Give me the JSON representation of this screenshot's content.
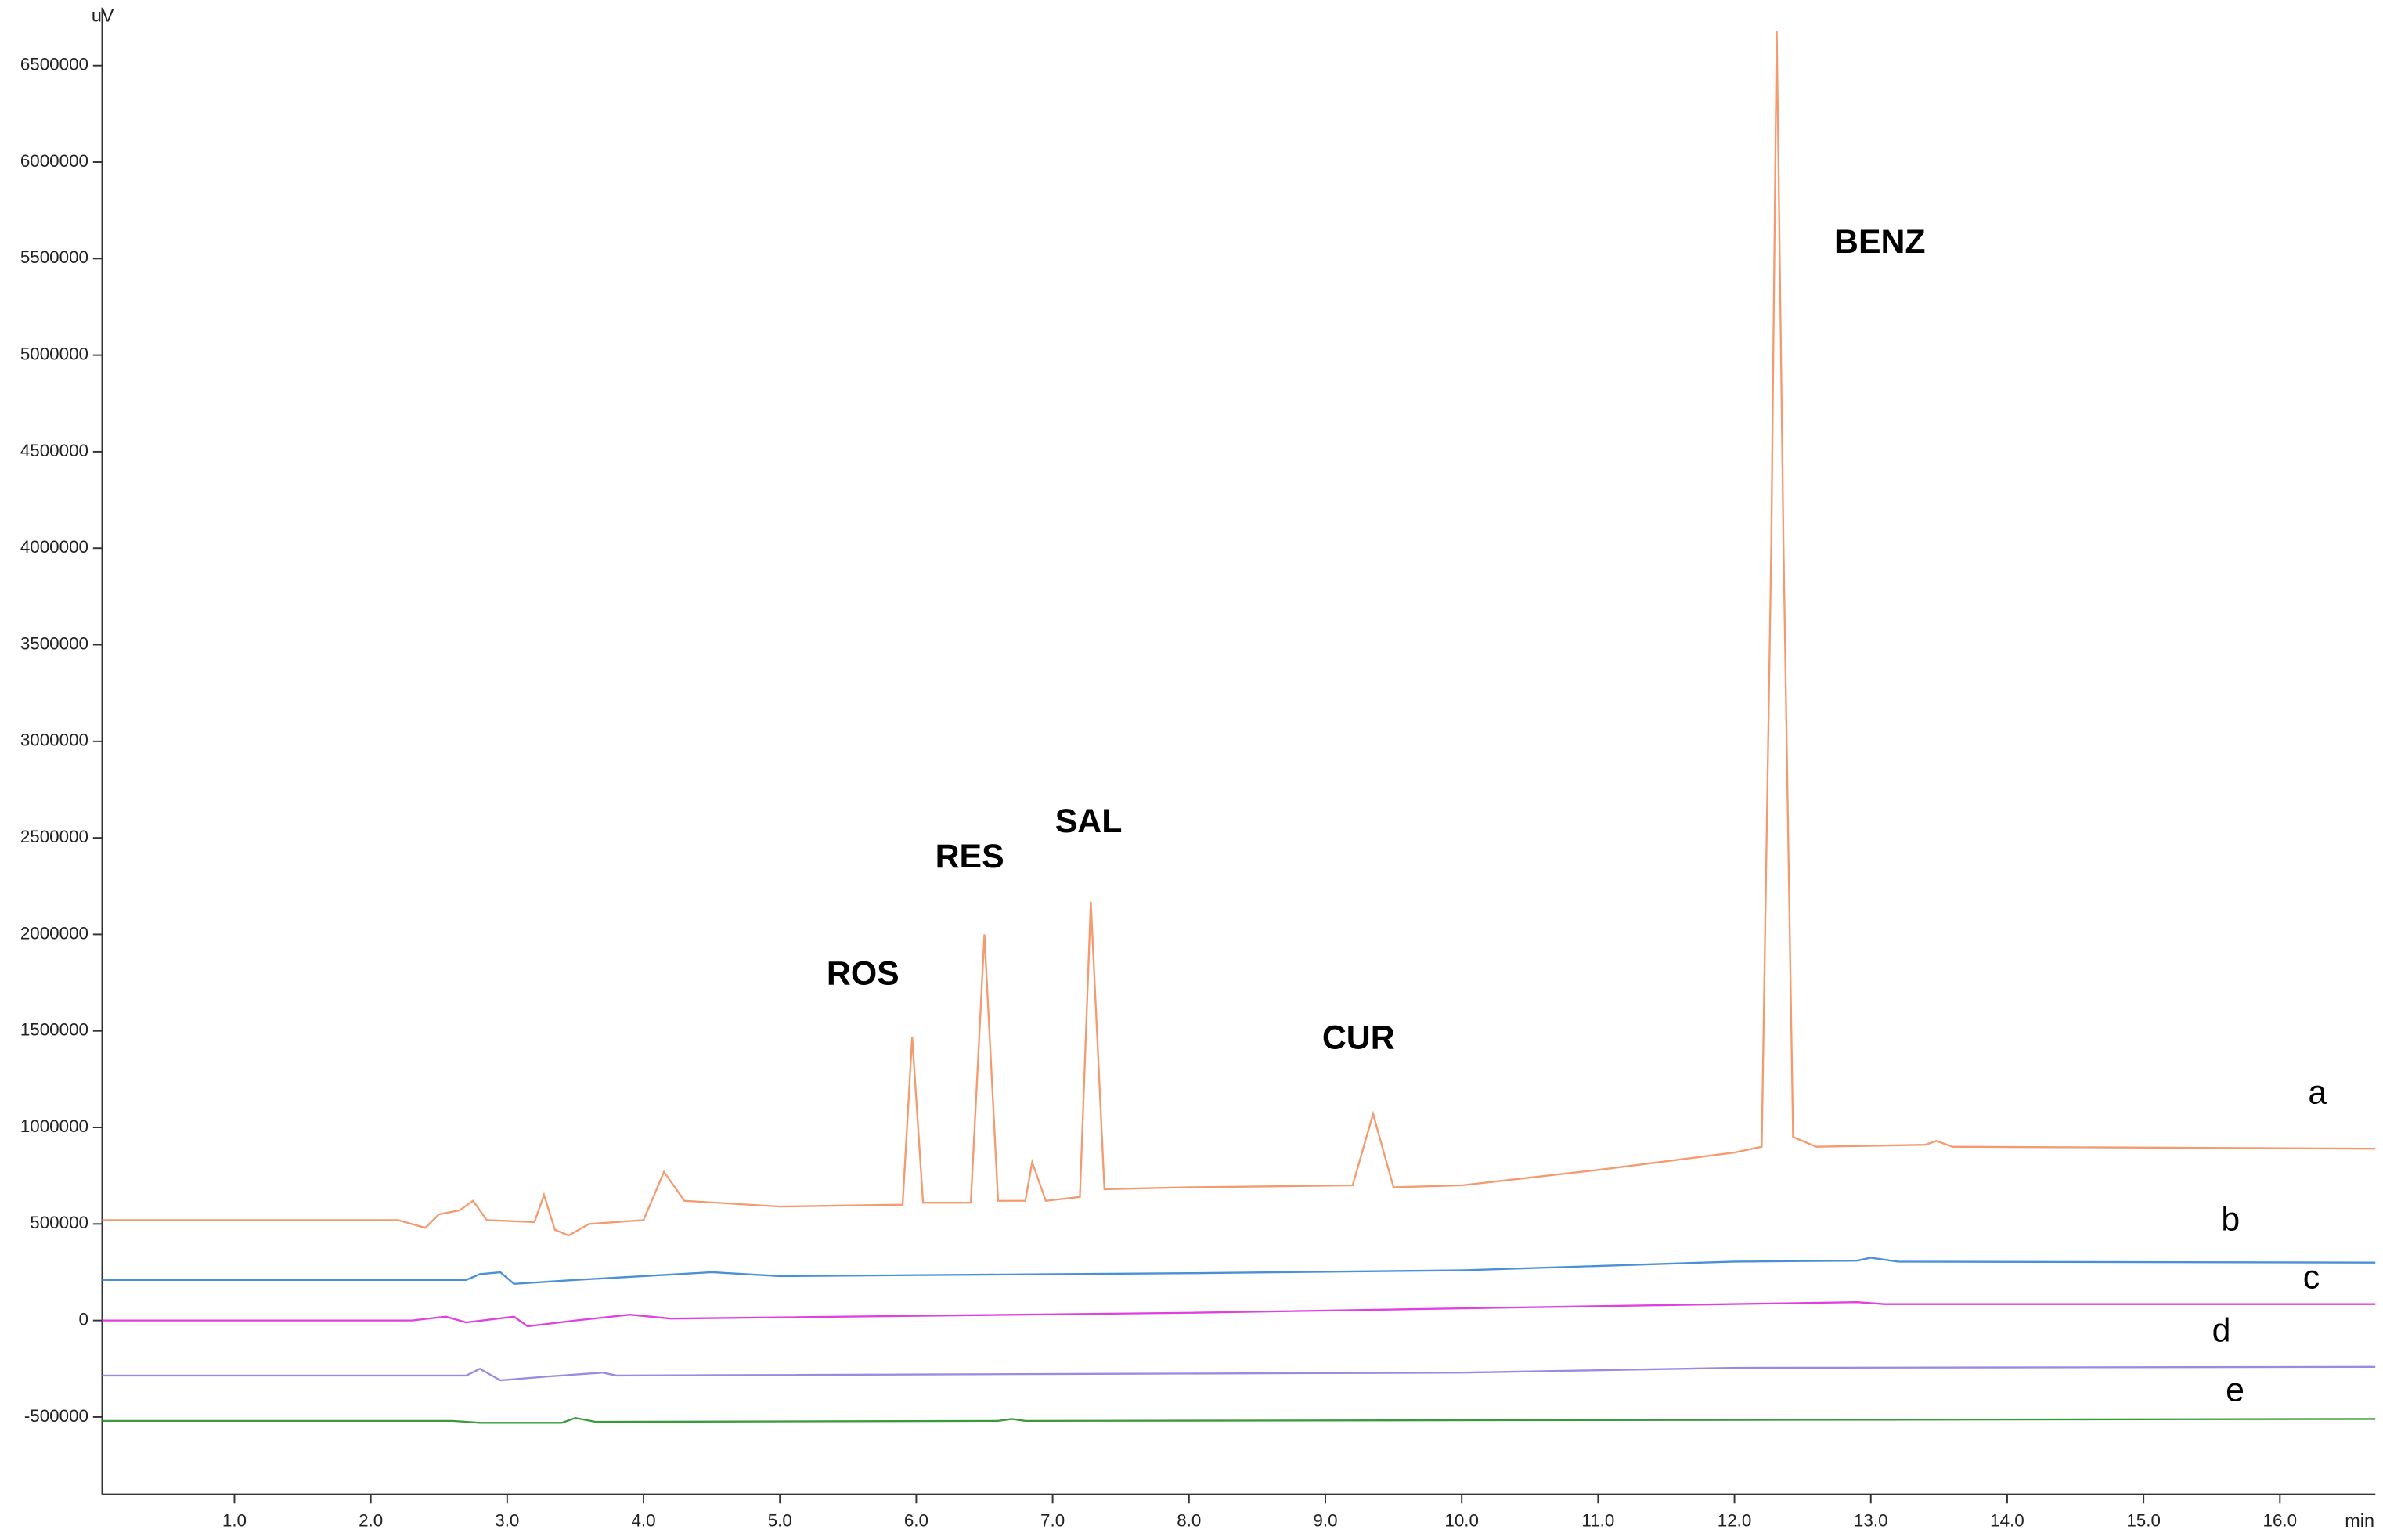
{
  "chart_data": {
    "type": "line",
    "y_unit": "uV",
    "x_unit": "min",
    "xlim": [
      0.03,
      16.7
    ],
    "ylim": [
      -900000,
      6800000
    ],
    "xticks": [
      {
        "value": 1,
        "label": "1.0"
      },
      {
        "value": 2,
        "label": "2.0"
      },
      {
        "value": 3,
        "label": "3.0"
      },
      {
        "value": 4,
        "label": "4.0"
      },
      {
        "value": 5,
        "label": "5.0"
      },
      {
        "value": 6,
        "label": "6.0"
      },
      {
        "value": 7,
        "label": "7.0"
      },
      {
        "value": 8,
        "label": "8.0"
      },
      {
        "value": 9,
        "label": "9.0"
      },
      {
        "value": 10,
        "label": "10.0"
      },
      {
        "value": 11,
        "label": "11.0"
      },
      {
        "value": 12,
        "label": "12.0"
      },
      {
        "value": 13,
        "label": "13.0"
      },
      {
        "value": 14,
        "label": "14.0"
      },
      {
        "value": 15,
        "label": "15.0"
      },
      {
        "value": 16,
        "label": "16.0"
      }
    ],
    "yticks": [
      -500000,
      0,
      500000,
      1000000,
      1500000,
      2000000,
      2500000,
      3000000,
      3500000,
      4000000,
      4500000,
      5000000,
      5500000,
      6000000,
      6500000
    ],
    "annotations": [
      "ROS",
      "RES",
      "SAL",
      "CUR",
      "BENZ"
    ],
    "series": [
      {
        "name": "a",
        "color": "#f59a6e",
        "x": [
          0.03,
          2.2,
          2.4,
          2.5,
          2.65,
          2.75,
          2.85,
          3.2,
          3.27,
          3.35,
          3.45,
          3.6,
          4.0,
          4.15,
          4.3,
          5.0,
          5.9,
          5.97,
          6.05,
          6.4,
          6.5,
          6.6,
          6.8,
          6.85,
          6.95,
          7.2,
          7.28,
          7.38,
          8.0,
          9.2,
          9.35,
          9.5,
          10.0,
          11.0,
          12.0,
          12.2,
          12.27,
          12.31,
          12.36,
          12.43,
          12.6,
          13.4,
          13.48,
          13.6,
          16.7
        ],
        "values": [
          520000,
          520000,
          480000,
          550000,
          570000,
          620000,
          520000,
          510000,
          650000,
          470000,
          440000,
          500000,
          520000,
          770000,
          620000,
          590000,
          600000,
          1470000,
          610000,
          610000,
          2000000,
          620000,
          620000,
          820000,
          620000,
          640000,
          2170000,
          680000,
          690000,
          700000,
          1070000,
          690000,
          700000,
          780000,
          870000,
          900000,
          4000000,
          6680000,
          4000000,
          950000,
          900000,
          910000,
          930000,
          900000,
          890000
        ]
      },
      {
        "name": "b",
        "color": "#4a90d9",
        "x": [
          0.03,
          2.7,
          2.8,
          2.95,
          3.05,
          3.5,
          4.5,
          5.0,
          8.0,
          10.0,
          12.0,
          12.9,
          13.0,
          13.2,
          16.7
        ],
        "values": [
          210000,
          210000,
          240000,
          250000,
          190000,
          210000,
          250000,
          230000,
          245000,
          260000,
          305000,
          310000,
          325000,
          305000,
          300000
        ]
      },
      {
        "name": "c",
        "color": "#e040e0",
        "x": [
          0.03,
          2.3,
          2.55,
          2.7,
          3.05,
          3.15,
          3.5,
          3.9,
          4.2,
          8.0,
          11.5,
          12.9,
          13.1,
          16.7
        ],
        "values": [
          0,
          0,
          20000,
          -10000,
          20000,
          -30000,
          0,
          30000,
          10000,
          40000,
          80000,
          95000,
          85000,
          85000
        ]
      },
      {
        "name": "d",
        "color": "#9a8ae0",
        "x": [
          0.03,
          2.7,
          2.8,
          2.95,
          3.3,
          3.7,
          3.8,
          10.0,
          12.0,
          16.7
        ],
        "values": [
          -285000,
          -285000,
          -250000,
          -310000,
          -290000,
          -270000,
          -285000,
          -270000,
          -245000,
          -240000
        ]
      },
      {
        "name": "e",
        "color": "#3a9a3a",
        "x": [
          0.03,
          2.6,
          2.8,
          3.4,
          3.5,
          3.65,
          6.6,
          6.7,
          6.8,
          16.7
        ],
        "values": [
          -520000,
          -520000,
          -530000,
          -530000,
          -505000,
          -525000,
          -520000,
          -510000,
          -520000,
          -510000
        ]
      }
    ]
  }
}
